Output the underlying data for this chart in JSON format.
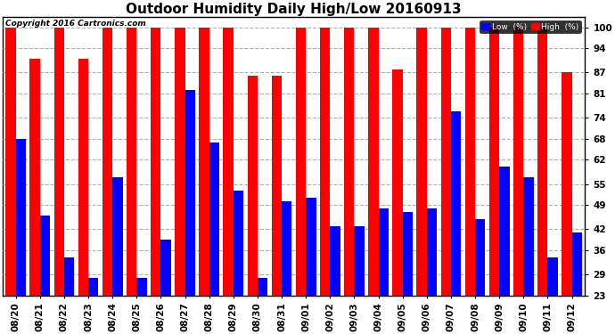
{
  "title": "Outdoor Humidity Daily High/Low 20160913",
  "copyright": "Copyright 2016 Cartronics.com",
  "dates": [
    "08/20",
    "08/21",
    "08/22",
    "08/23",
    "08/24",
    "08/25",
    "08/26",
    "08/27",
    "08/28",
    "08/29",
    "08/30",
    "08/31",
    "09/01",
    "09/02",
    "09/03",
    "09/04",
    "09/05",
    "09/06",
    "09/07",
    "09/08",
    "09/09",
    "09/10",
    "09/11",
    "09/12"
  ],
  "high": [
    100,
    91,
    100,
    91,
    100,
    100,
    100,
    100,
    100,
    100,
    86,
    86,
    100,
    100,
    100,
    100,
    88,
    100,
    100,
    100,
    100,
    100,
    100,
    87
  ],
  "low": [
    68,
    46,
    34,
    28,
    57,
    28,
    39,
    82,
    67,
    53,
    28,
    50,
    51,
    43,
    43,
    48,
    47,
    48,
    76,
    45,
    60,
    57,
    34,
    41
  ],
  "y_ticks": [
    23,
    29,
    36,
    42,
    49,
    55,
    62,
    68,
    74,
    81,
    87,
    94,
    100
  ],
  "ylim": [
    23,
    103
  ],
  "bar_bottom": 23,
  "bar_color_high": "#ff0000",
  "bar_color_low": "#0000ff",
  "background_color": "#ffffff",
  "grid_color": "#b0b0b0",
  "title_fontsize": 11,
  "copyright_fontsize": 6.5,
  "tick_fontsize": 7.5,
  "legend_high_label": "High  (%)",
  "legend_low_label": "Low  (%)"
}
